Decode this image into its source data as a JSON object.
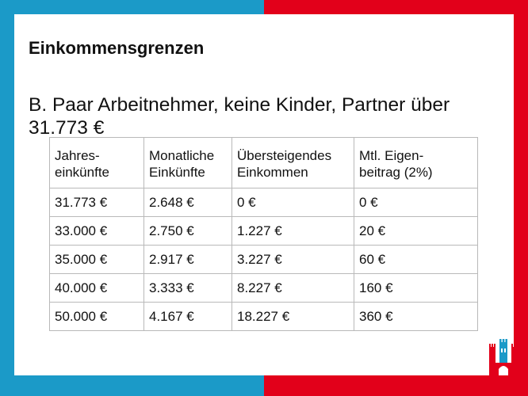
{
  "slide": {
    "title": "Einkommensgrenzen",
    "subtitle": "B. Paar Arbeitnehmer, keine Kinder, Partner über 31.773 €"
  },
  "table": {
    "headers": [
      [
        "Jahres-",
        "einkünfte"
      ],
      [
        "Monatliche",
        "Einkünfte"
      ],
      [
        "Übersteigendes",
        "Einkommen"
      ],
      [
        "Mtl. Eigen-",
        "beitrag (2%)"
      ]
    ],
    "rows": [
      [
        "31.773 €",
        "2.648 €",
        "0 €",
        "0 €"
      ],
      [
        "33.000 €",
        "2.750 €",
        "1.227 €",
        "20 €"
      ],
      [
        "35.000 €",
        "2.917 €",
        "3.227 €",
        "60 €"
      ],
      [
        "40.000 €",
        "3.333 €",
        "8.227 €",
        "160 €"
      ],
      [
        "50.000 €",
        "4.167 €",
        "18.227 €",
        "360 €"
      ]
    ]
  },
  "colors": {
    "frame_left": "#1b9ac8",
    "frame_right": "#e2001a"
  },
  "logo": {
    "icon": "hamburg-castle-logo-icon"
  }
}
